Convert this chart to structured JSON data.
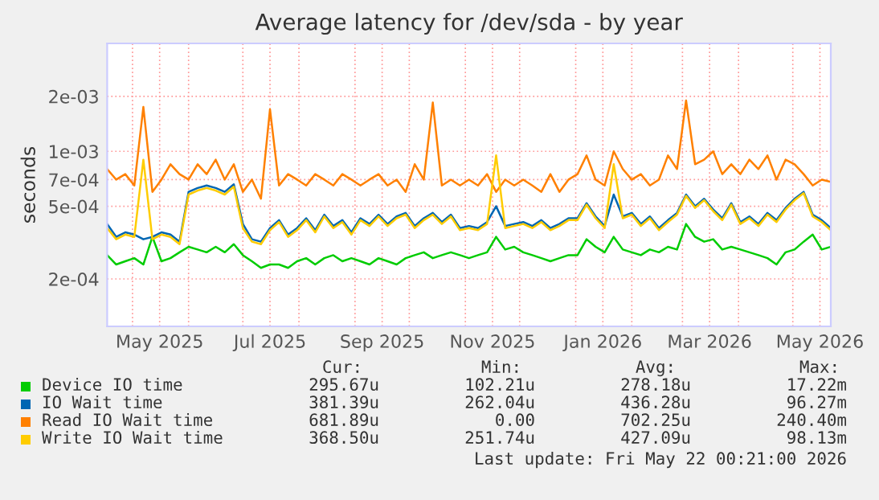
{
  "chart_data": {
    "type": "line",
    "title": "Average latency for /dev/sda - by year",
    "ylabel": "seconds",
    "log": "y",
    "grid": true,
    "legend": "bottom",
    "marker": "none",
    "line_style": "solid",
    "ylim": [
      0.00011,
      0.0039
    ],
    "yticks": [
      {
        "value": 0.0002,
        "label": "2e-04"
      },
      {
        "value": 0.0005,
        "label": "5e-04"
      },
      {
        "value": 0.0007,
        "label": "7e-04"
      },
      {
        "value": 0.001,
        "label": "1e-03"
      },
      {
        "value": 0.002,
        "label": "2e-03"
      }
    ],
    "xlim": [
      "2025-04-17",
      "2026-05-22"
    ],
    "xticks": [
      {
        "value": "2025-05-01",
        "label": null
      },
      {
        "value": "2025-05-16",
        "label": "May 2025"
      },
      {
        "value": "2025-06-01",
        "label": null
      },
      {
        "value": "2025-07-01",
        "label": null
      },
      {
        "value": "2025-07-16",
        "label": "Jul 2025"
      },
      {
        "value": "2025-08-01",
        "label": null
      },
      {
        "value": "2025-09-01",
        "label": null
      },
      {
        "value": "2025-09-16",
        "label": "Sep 2025"
      },
      {
        "value": "2025-10-01",
        "label": null
      },
      {
        "value": "2025-11-01",
        "label": null
      },
      {
        "value": "2025-11-16",
        "label": "Nov 2025"
      },
      {
        "value": "2025-12-01",
        "label": null
      },
      {
        "value": "2026-01-01",
        "label": null
      },
      {
        "value": "2026-01-16",
        "label": "Jan 2026"
      },
      {
        "value": "2026-02-01",
        "label": null
      },
      {
        "value": "2026-03-01",
        "label": null
      },
      {
        "value": "2026-03-16",
        "label": "Mar 2026"
      },
      {
        "value": "2026-04-01",
        "label": null
      },
      {
        "value": "2026-05-01",
        "label": null
      },
      {
        "value": "2026-05-16",
        "label": "May 2026"
      }
    ],
    "x": [
      "2025-04-17",
      "2025-04-22",
      "2025-04-27",
      "2025-05-02",
      "2025-05-07",
      "2025-05-12",
      "2025-05-17",
      "2025-05-22",
      "2025-05-27",
      "2025-06-01",
      "2025-06-06",
      "2025-06-11",
      "2025-06-16",
      "2025-06-21",
      "2025-06-26",
      "2025-07-01",
      "2025-07-06",
      "2025-07-11",
      "2025-07-16",
      "2025-07-21",
      "2025-07-26",
      "2025-07-31",
      "2025-08-05",
      "2025-08-10",
      "2025-08-15",
      "2025-08-20",
      "2025-08-25",
      "2025-08-30",
      "2025-09-04",
      "2025-09-09",
      "2025-09-14",
      "2025-09-19",
      "2025-09-24",
      "2025-09-29",
      "2025-10-04",
      "2025-10-09",
      "2025-10-14",
      "2025-10-19",
      "2025-10-24",
      "2025-10-29",
      "2025-11-03",
      "2025-11-08",
      "2025-11-13",
      "2025-11-18",
      "2025-11-23",
      "2025-11-28",
      "2025-12-03",
      "2025-12-08",
      "2025-12-13",
      "2025-12-18",
      "2025-12-23",
      "2025-12-28",
      "2026-01-02",
      "2026-01-07",
      "2026-01-12",
      "2026-01-17",
      "2026-01-22",
      "2026-01-27",
      "2026-02-01",
      "2026-02-06",
      "2026-02-11",
      "2026-02-16",
      "2026-02-21",
      "2026-02-26",
      "2026-03-03",
      "2026-03-08",
      "2026-03-13",
      "2026-03-18",
      "2026-03-23",
      "2026-03-28",
      "2026-04-02",
      "2026-04-07",
      "2026-04-12",
      "2026-04-17",
      "2026-04-22",
      "2026-04-27",
      "2026-05-02",
      "2026-05-07",
      "2026-05-12",
      "2026-05-17",
      "2026-05-22"
    ],
    "series": [
      {
        "name": "Device IO time",
        "color": "#00cc00",
        "values": [
          0.00027,
          0.00024,
          0.00025,
          0.00026,
          0.00024,
          0.00034,
          0.00025,
          0.00026,
          0.00028,
          0.0003,
          0.00029,
          0.00028,
          0.0003,
          0.00028,
          0.00031,
          0.00027,
          0.00025,
          0.00023,
          0.00024,
          0.00024,
          0.00023,
          0.00025,
          0.00026,
          0.00024,
          0.00026,
          0.00027,
          0.00025,
          0.00026,
          0.00025,
          0.00024,
          0.00026,
          0.00025,
          0.00024,
          0.00026,
          0.00027,
          0.00028,
          0.00026,
          0.00027,
          0.00028,
          0.00027,
          0.00026,
          0.00027,
          0.00028,
          0.00034,
          0.00029,
          0.0003,
          0.00028,
          0.00027,
          0.00026,
          0.00025,
          0.00026,
          0.00027,
          0.00027,
          0.00033,
          0.0003,
          0.00028,
          0.00034,
          0.00029,
          0.00028,
          0.00027,
          0.00029,
          0.00028,
          0.0003,
          0.00029,
          0.0004,
          0.00034,
          0.00032,
          0.00033,
          0.00029,
          0.0003,
          0.00029,
          0.00028,
          0.00027,
          0.00026,
          0.00024,
          0.00028,
          0.00029,
          0.00032,
          0.00035,
          0.00029,
          0.0003
        ]
      },
      {
        "name": "IO Wait time",
        "color": "#0066b3",
        "values": [
          0.0004,
          0.00034,
          0.00036,
          0.00035,
          0.00033,
          0.00034,
          0.00036,
          0.00035,
          0.00032,
          0.0006,
          0.00063,
          0.00065,
          0.00063,
          0.0006,
          0.00066,
          0.0004,
          0.00033,
          0.00032,
          0.00038,
          0.00042,
          0.00035,
          0.00038,
          0.00043,
          0.00037,
          0.00045,
          0.00039,
          0.00042,
          0.00036,
          0.00043,
          0.0004,
          0.00045,
          0.0004,
          0.00044,
          0.00046,
          0.00039,
          0.00043,
          0.00046,
          0.00041,
          0.00045,
          0.00038,
          0.00039,
          0.00038,
          0.00041,
          0.0005,
          0.00039,
          0.0004,
          0.00041,
          0.00039,
          0.00042,
          0.00038,
          0.0004,
          0.00043,
          0.00043,
          0.00052,
          0.00044,
          0.00039,
          0.00058,
          0.00044,
          0.00046,
          0.0004,
          0.00044,
          0.00038,
          0.00042,
          0.00046,
          0.00058,
          0.0005,
          0.00055,
          0.00048,
          0.00043,
          0.00052,
          0.00041,
          0.00044,
          0.0004,
          0.00046,
          0.00042,
          0.00049,
          0.00055,
          0.0006,
          0.00045,
          0.00042,
          0.00038
        ]
      },
      {
        "name": "Read IO Wait time",
        "color": "#ff8000",
        "values": [
          0.0008,
          0.0007,
          0.00075,
          0.00065,
          0.00175,
          0.0006,
          0.0007,
          0.00085,
          0.00075,
          0.0007,
          0.00085,
          0.00075,
          0.0009,
          0.0007,
          0.00085,
          0.0006,
          0.0007,
          0.00055,
          0.0017,
          0.00065,
          0.00075,
          0.0007,
          0.00065,
          0.00075,
          0.0007,
          0.00065,
          0.00075,
          0.0007,
          0.00065,
          0.0007,
          0.00075,
          0.00065,
          0.0007,
          0.0006,
          0.00085,
          0.0007,
          0.00185,
          0.00065,
          0.0007,
          0.00065,
          0.0007,
          0.00065,
          0.00075,
          0.0006,
          0.0007,
          0.00065,
          0.0007,
          0.00065,
          0.0006,
          0.00075,
          0.0006,
          0.0007,
          0.00075,
          0.00095,
          0.0007,
          0.00065,
          0.001,
          0.0008,
          0.0007,
          0.00075,
          0.00065,
          0.0007,
          0.00095,
          0.0008,
          0.0019,
          0.00085,
          0.0009,
          0.001,
          0.00075,
          0.00085,
          0.00075,
          0.0009,
          0.0008,
          0.00095,
          0.0007,
          0.0009,
          0.00085,
          0.00075,
          0.00065,
          0.0007,
          0.00068
        ]
      },
      {
        "name": "Write IO Wait time",
        "color": "#ffcc00",
        "values": [
          0.00038,
          0.00033,
          0.00035,
          0.00034,
          0.0009,
          0.00033,
          0.00035,
          0.00034,
          0.00031,
          0.00058,
          0.00061,
          0.00063,
          0.00061,
          0.00058,
          0.00064,
          0.00038,
          0.00032,
          0.00031,
          0.00037,
          0.00041,
          0.00034,
          0.00037,
          0.00042,
          0.00036,
          0.00044,
          0.00038,
          0.00041,
          0.00035,
          0.00042,
          0.00039,
          0.00044,
          0.00039,
          0.00043,
          0.00045,
          0.00038,
          0.00042,
          0.00045,
          0.0004,
          0.00044,
          0.00037,
          0.00038,
          0.00037,
          0.0004,
          0.00095,
          0.00038,
          0.00039,
          0.0004,
          0.00038,
          0.00041,
          0.00037,
          0.00039,
          0.00042,
          0.00042,
          0.00051,
          0.00043,
          0.00038,
          0.00085,
          0.00043,
          0.00045,
          0.00039,
          0.00043,
          0.00037,
          0.00041,
          0.00045,
          0.00057,
          0.00049,
          0.00054,
          0.00047,
          0.00042,
          0.00051,
          0.0004,
          0.00043,
          0.00039,
          0.00045,
          0.00041,
          0.00048,
          0.00054,
          0.00059,
          0.00044,
          0.00041,
          0.00037
        ]
      }
    ],
    "annotations": [
      "Cur:",
      "Min:",
      "Avg:",
      "Max:",
      "295.67u",
      "102.21u",
      "278.18u",
      "17.22m",
      "381.39u",
      "262.04u",
      "436.28u",
      "96.27m",
      "681.89u",
      "0.00",
      "702.25u",
      "240.40m",
      "368.50u",
      "251.74u",
      "427.09u",
      "98.13m",
      "Last update: Fri May 22 00:21:00 2026"
    ]
  }
}
